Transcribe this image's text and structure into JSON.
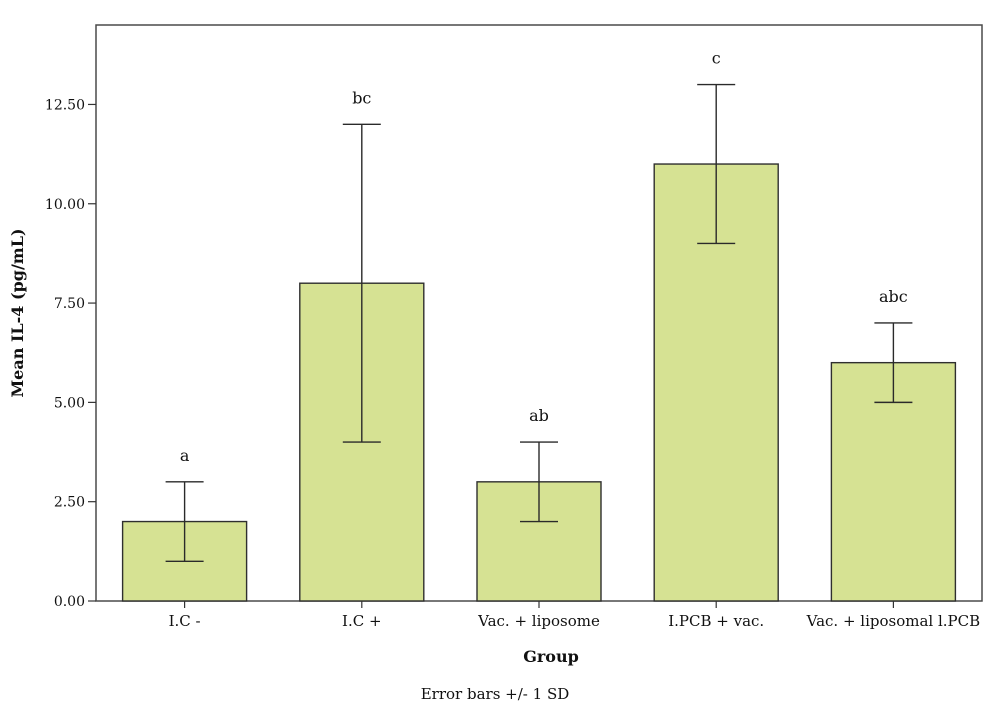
{
  "chart_data": {
    "type": "bar",
    "categories": [
      "I.C -",
      "I.C +",
      "Vac. + liposome",
      "I.PCB + vac.",
      "Vac. + liposomal l.PCB"
    ],
    "values": [
      2,
      8,
      3,
      11,
      6
    ],
    "error_sd": [
      1,
      4,
      1,
      2,
      1
    ],
    "significance_labels": [
      "a",
      "bc",
      "ab",
      "c",
      "abc"
    ],
    "xlabel": "Group",
    "ylabel": "Mean IL-4 (pg/mL)",
    "ylim": [
      0,
      14.5
    ],
    "yticks": [
      "0.00",
      "2.50",
      "5.00",
      "7.50",
      "10.00",
      "12.50"
    ],
    "ytick_values": [
      0,
      2.5,
      5,
      7.5,
      10,
      12.5
    ],
    "footnote": "Error bars +/- 1 SD",
    "bar_color": "#d6e293",
    "bar_edge_color": "#2f2f2f",
    "grid": false
  }
}
